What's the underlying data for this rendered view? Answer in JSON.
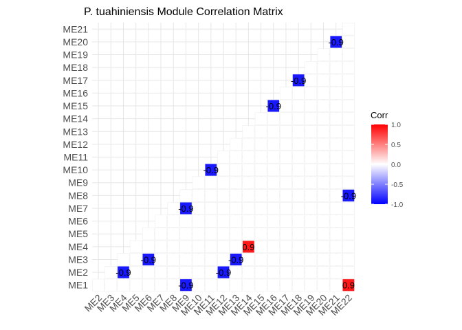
{
  "chart_data": {
    "type": "heatmap",
    "title": "P. tuahiniensis Module Correlation Matrix",
    "x_categories": [
      "ME2",
      "ME3",
      "ME4",
      "ME5",
      "ME6",
      "ME7",
      "ME8",
      "ME9",
      "ME10",
      "ME11",
      "ME12",
      "ME13",
      "ME14",
      "ME15",
      "ME16",
      "ME17",
      "ME18",
      "ME19",
      "ME20",
      "ME21",
      "ME22"
    ],
    "y_categories": [
      "ME1",
      "ME2",
      "ME3",
      "ME4",
      "ME5",
      "ME6",
      "ME7",
      "ME8",
      "ME9",
      "ME10",
      "ME11",
      "ME12",
      "ME13",
      "ME14",
      "ME15",
      "ME16",
      "ME17",
      "ME18",
      "ME19",
      "ME20",
      "ME21"
    ],
    "shape": "lower-triangle",
    "highlighted_cells": [
      {
        "x": "ME9",
        "y": "ME1",
        "value": -0.9,
        "label": "-0.9"
      },
      {
        "x": "ME22",
        "y": "ME1",
        "value": 0.9,
        "label": "0.9"
      },
      {
        "x": "ME4",
        "y": "ME2",
        "value": -0.9,
        "label": "-0.9"
      },
      {
        "x": "ME12",
        "y": "ME2",
        "value": -0.9,
        "label": "-0.9"
      },
      {
        "x": "ME6",
        "y": "ME3",
        "value": -0.9,
        "label": "-0.9"
      },
      {
        "x": "ME13",
        "y": "ME3",
        "value": -0.9,
        "label": "-0.9"
      },
      {
        "x": "ME14",
        "y": "ME4",
        "value": 0.9,
        "label": "0.9"
      },
      {
        "x": "ME9",
        "y": "ME7",
        "value": -0.9,
        "label": "-0.9"
      },
      {
        "x": "ME22",
        "y": "ME8",
        "value": -0.9,
        "label": "-0.9"
      },
      {
        "x": "ME11",
        "y": "ME10",
        "value": -0.9,
        "label": "-0.9"
      },
      {
        "x": "ME16",
        "y": "ME15",
        "value": -0.9,
        "label": "-0.9"
      },
      {
        "x": "ME18",
        "y": "ME17",
        "value": -0.9,
        "label": "-0.9"
      },
      {
        "x": "ME21",
        "y": "ME20",
        "value": -0.9,
        "label": "-0.9"
      }
    ],
    "legend": {
      "title": "Corr",
      "ticks": [
        {
          "value": 1.0,
          "label": "1.0"
        },
        {
          "value": 0.5,
          "label": "0.5"
        },
        {
          "value": 0.0,
          "label": "0.0"
        },
        {
          "value": -0.5,
          "label": "-0.5"
        },
        {
          "value": -1.0,
          "label": "-1.0"
        }
      ],
      "placement": "right"
    },
    "colors": {
      "negative": "#0000ff",
      "zero": "#ffffff",
      "positive": "#ff0000",
      "grid": "#e6e6e6"
    },
    "grid": true
  }
}
